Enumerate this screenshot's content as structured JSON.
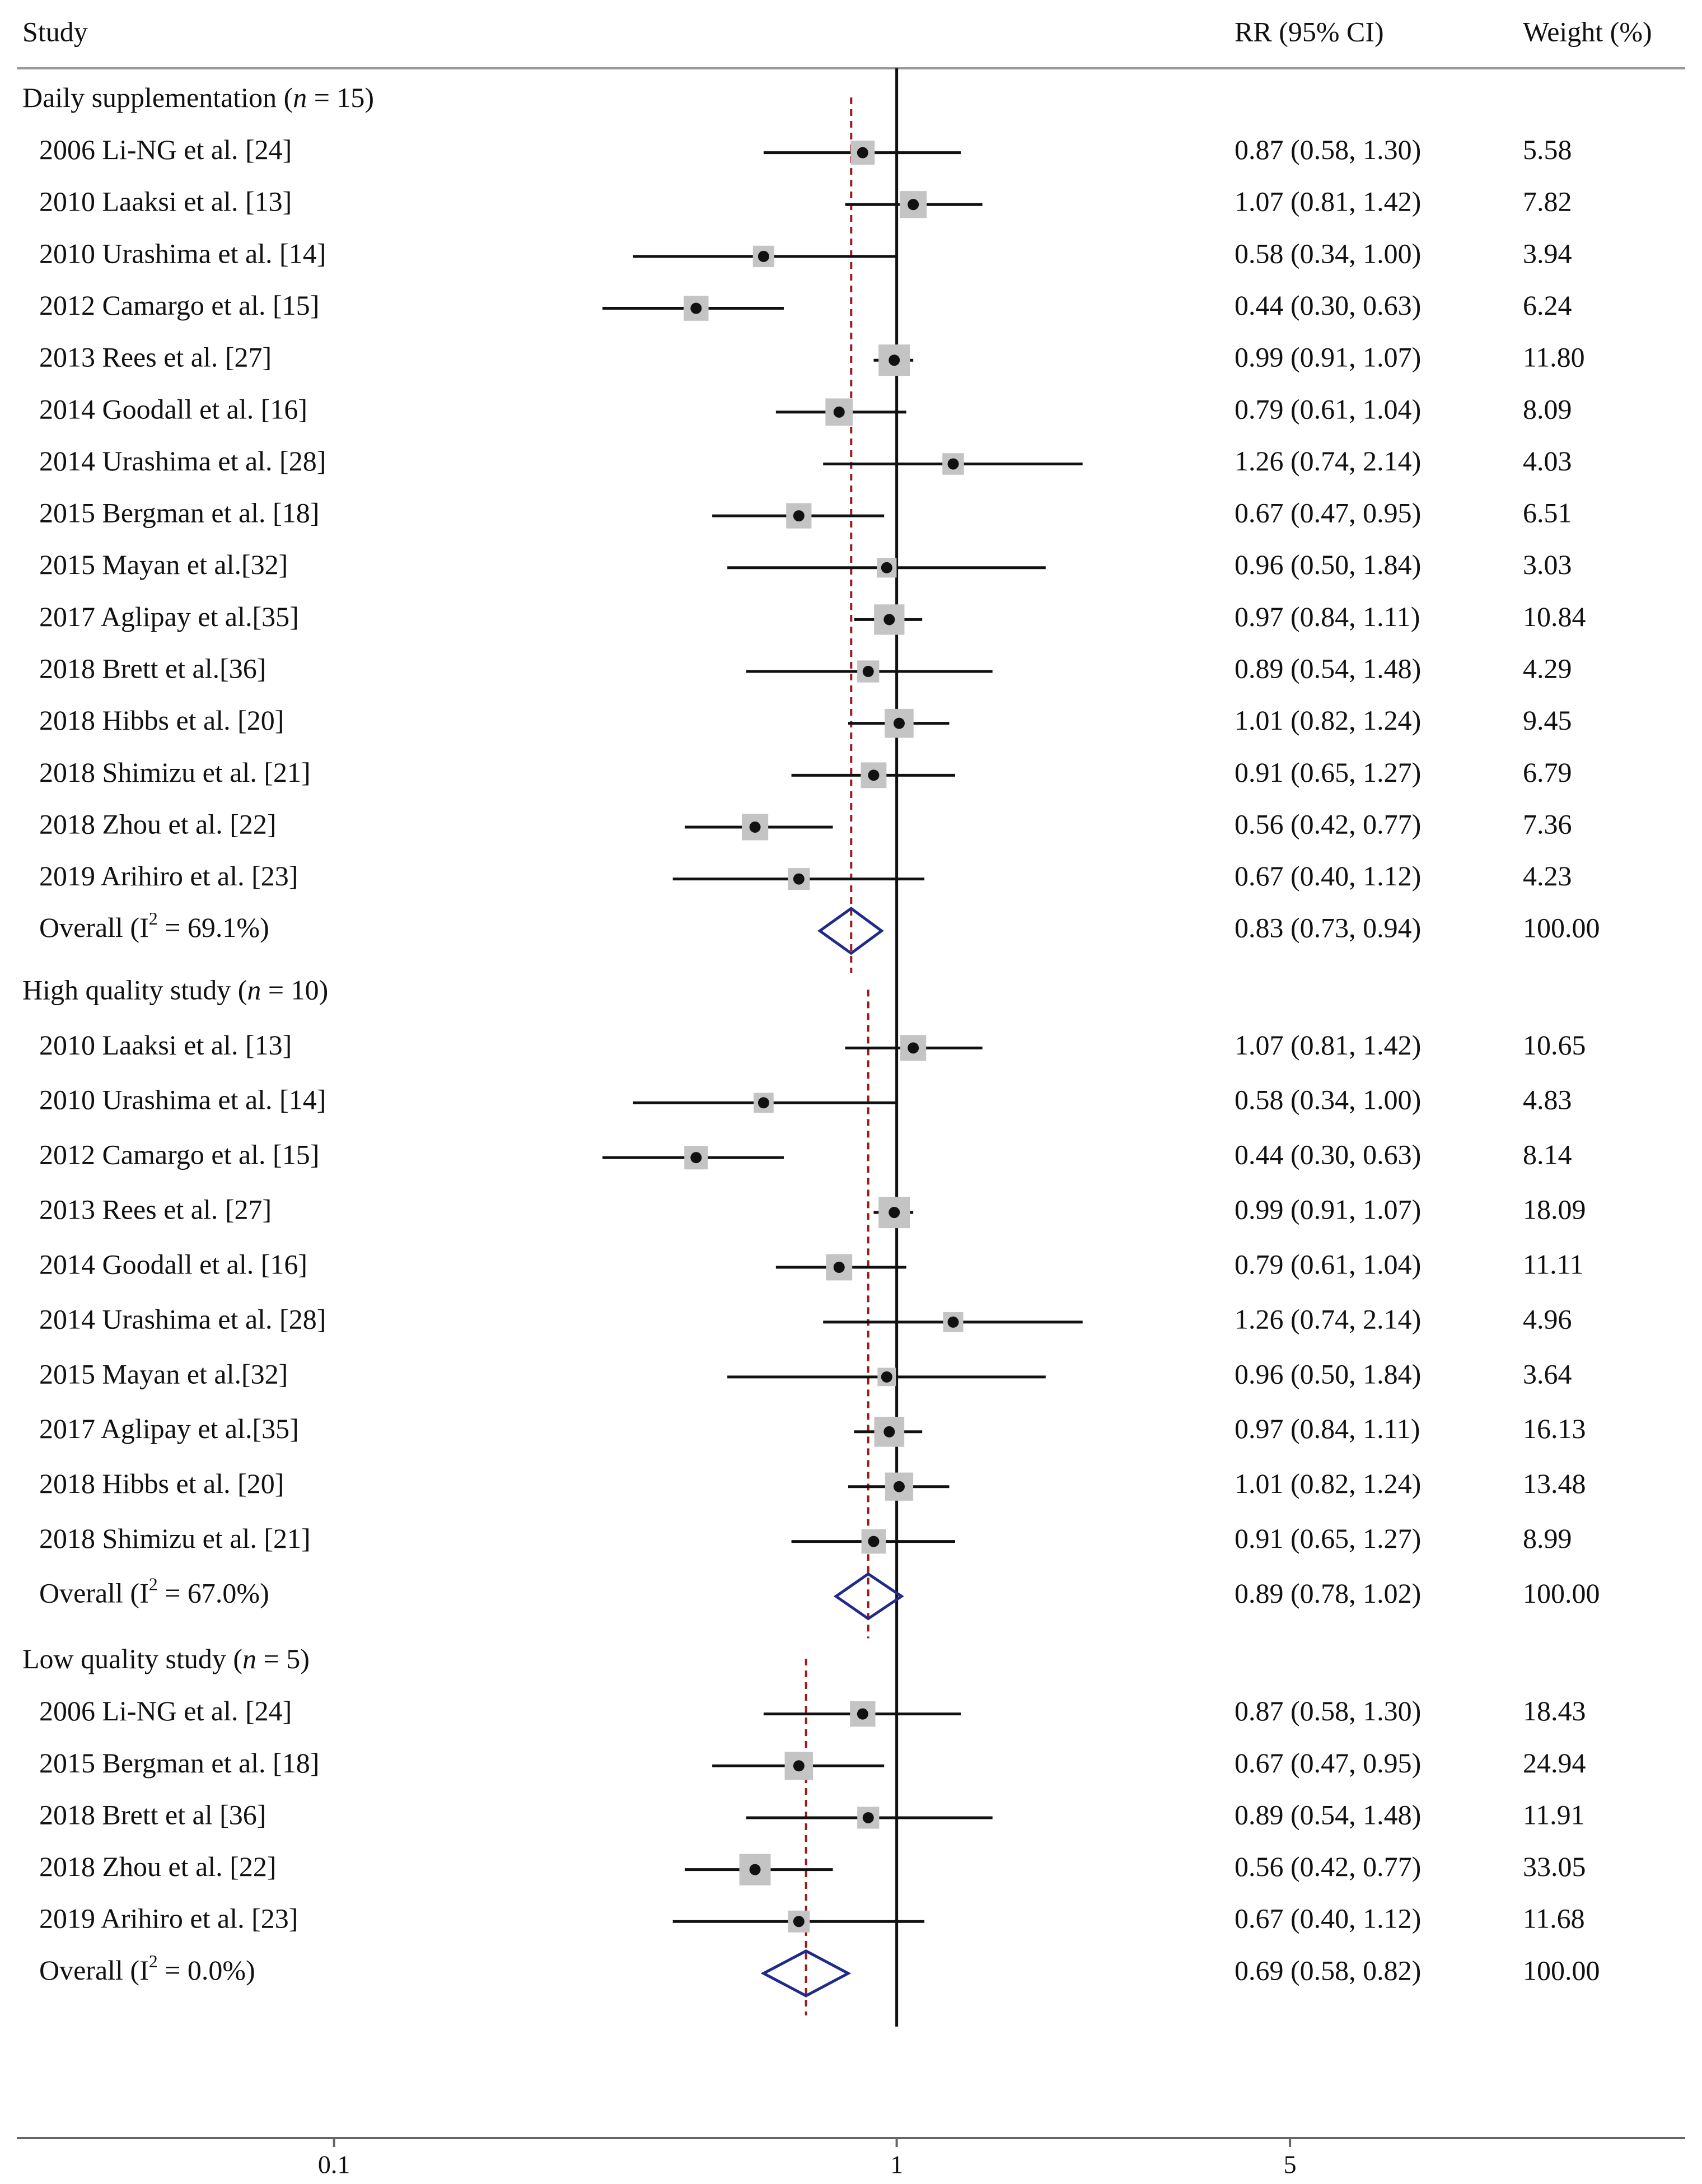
{
  "chart_data": {
    "type": "forest",
    "xscale": "log",
    "xlim": [
      0.0273,
      25.2
    ],
    "null_line": 1,
    "ticks": [
      {
        "value": 0.1,
        "label": "0.1"
      },
      {
        "value": 1,
        "label": "1"
      },
      {
        "value": 5,
        "label": "5"
      }
    ],
    "headers": {
      "study": "Study",
      "effect": "RR (95% CI)",
      "weight": "Weight (%)"
    },
    "groups": [
      {
        "key": "daily",
        "title": "Daily supplementation (",
        "n_symbol": "n",
        "n_text": " = 15)",
        "studies": [
          {
            "label": "2006 Li-NG et al. [24]",
            "rr": 0.87,
            "lo": 0.58,
            "hi": 1.3,
            "ci": "0.87 (0.58, 1.30)",
            "weight": "5.58",
            "w": 5.58
          },
          {
            "label": "2010 Laaksi  et al. [13]",
            "rr": 1.07,
            "lo": 0.81,
            "hi": 1.42,
            "ci": "1.07 (0.81, 1.42)",
            "weight": "7.82",
            "w": 7.82
          },
          {
            "label": "2010 Urashima et al. [14]",
            "rr": 0.58,
            "lo": 0.34,
            "hi": 1.0,
            "ci": "0.58 (0.34, 1.00)",
            "weight": "3.94",
            "w": 3.94
          },
          {
            "label": "2012 Camargo et al. [15]",
            "rr": 0.44,
            "lo": 0.3,
            "hi": 0.63,
            "ci": "0.44 (0.30, 0.63)",
            "weight": "6.24",
            "w": 6.24
          },
          {
            "label": "2013 Rees et al. [27]",
            "rr": 0.99,
            "lo": 0.91,
            "hi": 1.07,
            "ci": "0.99 (0.91, 1.07)",
            "weight": "11.80",
            "w": 11.8
          },
          {
            "label": "2014 Goodall et al. [16]",
            "rr": 0.79,
            "lo": 0.61,
            "hi": 1.04,
            "ci": "0.79 (0.61, 1.04)",
            "weight": "8.09",
            "w": 8.09
          },
          {
            "label": "2014 Urashima et al. [28]",
            "rr": 1.26,
            "lo": 0.74,
            "hi": 2.14,
            "ci": "1.26 (0.74, 2.14)",
            "weight": "4.03",
            "w": 4.03
          },
          {
            "label": "2015 Bergman et al. [18]",
            "rr": 0.67,
            "lo": 0.47,
            "hi": 0.95,
            "ci": "0.67 (0.47, 0.95)",
            "weight": "6.51",
            "w": 6.51
          },
          {
            "label": "2015 Mayan et al.[32]",
            "rr": 0.96,
            "lo": 0.5,
            "hi": 1.84,
            "ci": "0.96 (0.50, 1.84)",
            "weight": "3.03",
            "w": 3.03
          },
          {
            "label": "2017 Aglipay et al.[35]",
            "rr": 0.97,
            "lo": 0.84,
            "hi": 1.11,
            "ci": "0.97 (0.84, 1.11)",
            "weight": "10.84",
            "w": 10.84
          },
          {
            "label": "2018 Brett et al.[36]",
            "rr": 0.89,
            "lo": 0.54,
            "hi": 1.48,
            "ci": "0.89 (0.54, 1.48)",
            "weight": "4.29",
            "w": 4.29
          },
          {
            "label": "2018 Hibbs et al. [20]",
            "rr": 1.01,
            "lo": 0.82,
            "hi": 1.24,
            "ci": "1.01 (0.82, 1.24)",
            "weight": "9.45",
            "w": 9.45
          },
          {
            "label": "2018 Shimizu et al. [21]",
            "rr": 0.91,
            "lo": 0.65,
            "hi": 1.27,
            "ci": "0.91 (0.65, 1.27)",
            "weight": "6.79",
            "w": 6.79
          },
          {
            "label": "2018 Zhou et al. [22]",
            "rr": 0.56,
            "lo": 0.42,
            "hi": 0.77,
            "ci": "0.56 (0.42, 0.77)",
            "weight": "7.36",
            "w": 7.36
          },
          {
            "label": "2019 Arihiro et al. [23]",
            "rr": 0.67,
            "lo": 0.4,
            "hi": 1.12,
            "ci": "0.67 (0.40, 1.12)",
            "weight": "4.23",
            "w": 4.23
          }
        ],
        "overall": {
          "label_prefix": "Overall  (I",
          "sup": "2",
          "label_suffix": " = 69.1%)",
          "rr": 0.83,
          "lo": 0.73,
          "hi": 0.94,
          "ci": "0.83 (0.73, 0.94)",
          "weight": "100.00"
        }
      },
      {
        "key": "high",
        "title": "High quality study (",
        "n_symbol": "n",
        "n_text": " = 10)",
        "studies": [
          {
            "label": "2010 Laaksi et al. [13]",
            "rr": 1.07,
            "lo": 0.81,
            "hi": 1.42,
            "ci": "1.07 (0.81, 1.42)",
            "weight": "10.65",
            "w": 10.65
          },
          {
            "label": "2010 Urashima et al. [14]",
            "rr": 0.58,
            "lo": 0.34,
            "hi": 1.0,
            "ci": "0.58 (0.34, 1.00)",
            "weight": "4.83",
            "w": 4.83
          },
          {
            "label": "2012 Camargo et al. [15]",
            "rr": 0.44,
            "lo": 0.3,
            "hi": 0.63,
            "ci": "0.44 (0.30, 0.63)",
            "weight": "8.14",
            "w": 8.14
          },
          {
            "label": "2013 Rees et al. [27]",
            "rr": 0.99,
            "lo": 0.91,
            "hi": 1.07,
            "ci": "0.99 (0.91, 1.07)",
            "weight": "18.09",
            "w": 18.09
          },
          {
            "label": "2014 Goodall et al. [16]",
            "rr": 0.79,
            "lo": 0.61,
            "hi": 1.04,
            "ci": "0.79 (0.61, 1.04)",
            "weight": "11.11",
            "w": 11.11
          },
          {
            "label": "2014 Urashima et al. [28]",
            "rr": 1.26,
            "lo": 0.74,
            "hi": 2.14,
            "ci": "1.26 (0.74, 2.14)",
            "weight": "4.96",
            "w": 4.96
          },
          {
            "label": "2015 Mayan et al.[32]",
            "rr": 0.96,
            "lo": 0.5,
            "hi": 1.84,
            "ci": "0.96 (0.50, 1.84)",
            "weight": "3.64",
            "w": 3.64
          },
          {
            "label": "2017 Aglipay et al.[35]",
            "rr": 0.97,
            "lo": 0.84,
            "hi": 1.11,
            "ci": "0.97 (0.84, 1.11)",
            "weight": "16.13",
            "w": 16.13
          },
          {
            "label": "2018 Hibbs et al. [20]",
            "rr": 1.01,
            "lo": 0.82,
            "hi": 1.24,
            "ci": "1.01 (0.82, 1.24)",
            "weight": "13.48",
            "w": 13.48
          },
          {
            "label": "2018 Shimizu et al. [21]",
            "rr": 0.91,
            "lo": 0.65,
            "hi": 1.27,
            "ci": "0.91 (0.65, 1.27)",
            "weight": "8.99",
            "w": 8.99
          }
        ],
        "overall": {
          "label_prefix": "Overall  (I",
          "sup": "2",
          "label_suffix": " = 67.0%)",
          "rr": 0.89,
          "lo": 0.78,
          "hi": 1.02,
          "ci": "0.89 (0.78, 1.02)",
          "weight": "100.00"
        }
      },
      {
        "key": "low",
        "title": "Low quality study (",
        "n_symbol": "n",
        "n_text": " = 5)",
        "studies": [
          {
            "label": "2006 Li-NG et al. [24]",
            "rr": 0.87,
            "lo": 0.58,
            "hi": 1.3,
            "ci": "0.87 (0.58, 1.30)",
            "weight": "18.43",
            "w": 18.43
          },
          {
            "label": "2015 Bergman et al. [18]",
            "rr": 0.67,
            "lo": 0.47,
            "hi": 0.95,
            "ci": "0.67 (0.47, 0.95)",
            "weight": "24.94",
            "w": 24.94
          },
          {
            "label": "2018 Brett et al [36]",
            "rr": 0.89,
            "lo": 0.54,
            "hi": 1.48,
            "ci": "0.89 (0.54, 1.48)",
            "weight": "11.91",
            "w": 11.91
          },
          {
            "label": "2018 Zhou et al. [22]",
            "rr": 0.56,
            "lo": 0.42,
            "hi": 0.77,
            "ci": "0.56 (0.42, 0.77)",
            "weight": "33.05",
            "w": 33.05
          },
          {
            "label": "2019 Arihiro et al. [23]",
            "rr": 0.67,
            "lo": 0.4,
            "hi": 1.12,
            "ci": "0.67 (0.40, 1.12)",
            "weight": "11.68",
            "w": 11.68
          }
        ],
        "overall": {
          "label_prefix": "Overall  (I",
          "sup": "2",
          "label_suffix": " = 0.0%)",
          "rr": 0.69,
          "lo": 0.58,
          "hi": 0.82,
          "ci": "0.69 (0.58, 0.82)",
          "weight": "100.00"
        }
      }
    ],
    "colors": {
      "line": "#111111",
      "box": "#c4c4c4",
      "dashed": "#9b1b1b",
      "diamond": "#1f2a8a"
    }
  }
}
